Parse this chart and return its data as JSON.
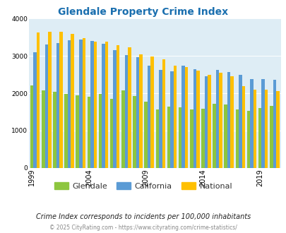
{
  "title": "Glendale Property Crime Index",
  "title_color": "#1a6faf",
  "subtitle": "Crime Index corresponds to incidents per 100,000 inhabitants",
  "footer": "© 2025 CityRating.com - https://www.cityrating.com/crime-statistics/",
  "years": [
    1999,
    2000,
    2001,
    2002,
    2003,
    2004,
    2005,
    2006,
    2007,
    2008,
    2009,
    2010,
    2011,
    2012,
    2013,
    2014,
    2015,
    2016,
    2017,
    2018,
    2019,
    2020
  ],
  "glendale": [
    2200,
    2070,
    2040,
    1990,
    1940,
    1910,
    1990,
    1840,
    2080,
    1920,
    1780,
    1570,
    1640,
    1620,
    1570,
    1580,
    1720,
    1700,
    1560,
    1520,
    1610,
    1650
  ],
  "california": [
    3100,
    3310,
    3350,
    3420,
    3430,
    3410,
    3330,
    3150,
    3020,
    2960,
    2730,
    2620,
    2580,
    2730,
    2640,
    2460,
    2620,
    2560,
    2500,
    2380,
    2370,
    2360
  ],
  "national": [
    3620,
    3650,
    3640,
    3590,
    3480,
    3390,
    3390,
    3290,
    3230,
    3050,
    2990,
    2900,
    2740,
    2700,
    2610,
    2490,
    2550,
    2460,
    2190,
    2100,
    2090,
    2050
  ],
  "color_glendale": "#8dc63f",
  "color_california": "#5b9bd5",
  "color_national": "#ffc000",
  "background_color": "#deedf5",
  "ylim": [
    0,
    4000
  ],
  "yticks": [
    0,
    1000,
    2000,
    3000,
    4000
  ],
  "label_years": [
    1999,
    2004,
    2009,
    2014,
    2019
  ],
  "bar_width": 0.28,
  "figsize": [
    4.06,
    3.3
  ],
  "dpi": 100
}
